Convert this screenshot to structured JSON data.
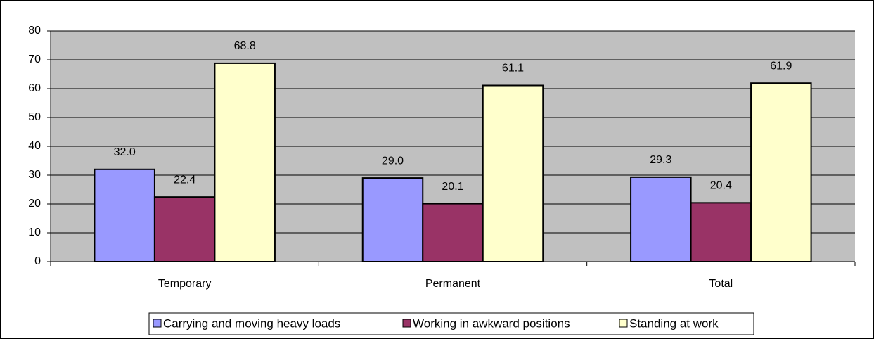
{
  "chart_data": {
    "type": "bar",
    "categories": [
      "Temporary",
      "Permanent",
      "Total"
    ],
    "series": [
      {
        "name": "Carrying and moving heavy loads",
        "color": "#9999ff",
        "values": [
          32.0,
          29.0,
          29.3
        ],
        "value_labels": [
          "32.0",
          "29.0",
          "29.3"
        ]
      },
      {
        "name": "Working in awkward positions",
        "color": "#993366",
        "values": [
          22.4,
          20.1,
          20.4
        ],
        "value_labels": [
          "22.4",
          "20.1",
          "20.4"
        ]
      },
      {
        "name": "Standing at work",
        "color": "#ffffcc",
        "values": [
          68.8,
          61.1,
          61.9
        ],
        "value_labels": [
          "68.8",
          "61.1",
          "61.9"
        ]
      }
    ],
    "ylim": [
      0,
      80
    ],
    "yticks": [
      0,
      10,
      20,
      30,
      40,
      50,
      60,
      70,
      80
    ],
    "grid": true,
    "legend": "bottom"
  }
}
